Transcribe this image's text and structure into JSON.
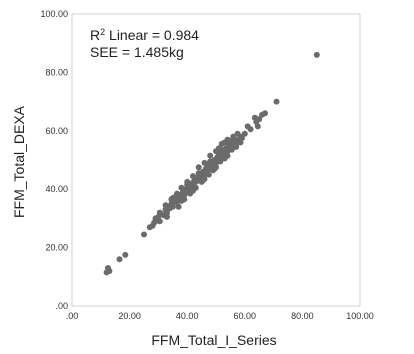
{
  "chart_data": {
    "type": "scatter",
    "xlabel": "FFM_Total_I_Series",
    "ylabel": "FFM_Total_DEXA",
    "xlim": [
      0,
      100
    ],
    "ylim": [
      0,
      100
    ],
    "x_ticks": [
      ".00",
      "20.00",
      "40.00",
      "60.00",
      "80.00",
      "100.00"
    ],
    "y_ticks": [
      ".00",
      "20.00",
      "40.00",
      "60.00",
      "80.00",
      "100.00"
    ],
    "annotations": {
      "r2_prefix": "R",
      "r2_superscript": "2",
      "r2_text": " Linear = 0.984",
      "see_text": "SEE = 1.485kg"
    },
    "point_color": "#6b6b6b",
    "grid": false,
    "points": [
      [
        12.0,
        11.5
      ],
      [
        12.5,
        13.0
      ],
      [
        13.0,
        12.0
      ],
      [
        16.5,
        16.0
      ],
      [
        18.5,
        17.5
      ],
      [
        25.0,
        24.5
      ],
      [
        27.0,
        27.0
      ],
      [
        28.0,
        27.5
      ],
      [
        29.0,
        29.0
      ],
      [
        30.0,
        30.5
      ],
      [
        30.5,
        29.0
      ],
      [
        31.0,
        31.5
      ],
      [
        32.0,
        31.0
      ],
      [
        32.5,
        33.0
      ],
      [
        33.0,
        32.0
      ],
      [
        33.5,
        34.0
      ],
      [
        34.0,
        33.5
      ],
      [
        34.5,
        35.0
      ],
      [
        35.0,
        34.0
      ],
      [
        35.5,
        36.0
      ],
      [
        36.0,
        35.5
      ],
      [
        36.5,
        37.0
      ],
      [
        37.0,
        36.0
      ],
      [
        37.5,
        38.0
      ],
      [
        38.0,
        37.5
      ],
      [
        38.5,
        39.0
      ],
      [
        39.0,
        38.0
      ],
      [
        39.5,
        40.0
      ],
      [
        40.0,
        39.0
      ],
      [
        40.5,
        41.0
      ],
      [
        41.0,
        40.0
      ],
      [
        41.5,
        42.0
      ],
      [
        42.0,
        41.0
      ],
      [
        42.5,
        43.0
      ],
      [
        43.0,
        42.5
      ],
      [
        43.5,
        44.0
      ],
      [
        44.0,
        43.0
      ],
      [
        44.5,
        45.0
      ],
      [
        45.0,
        44.5
      ],
      [
        45.5,
        46.0
      ],
      [
        46.0,
        45.0
      ],
      [
        46.5,
        47.0
      ],
      [
        47.0,
        46.5
      ],
      [
        47.5,
        48.0
      ],
      [
        48.0,
        47.0
      ],
      [
        48.5,
        49.0
      ],
      [
        49.0,
        48.5
      ],
      [
        49.5,
        50.0
      ],
      [
        50.0,
        49.0
      ],
      [
        50.5,
        51.0
      ],
      [
        51.0,
        50.5
      ],
      [
        51.5,
        52.0
      ],
      [
        52.0,
        51.0
      ],
      [
        52.5,
        53.0
      ],
      [
        53.0,
        52.5
      ],
      [
        53.5,
        54.0
      ],
      [
        54.0,
        53.0
      ],
      [
        54.5,
        55.0
      ],
      [
        55.0,
        54.5
      ],
      [
        55.5,
        56.0
      ],
      [
        56.0,
        55.0
      ],
      [
        56.5,
        57.0
      ],
      [
        57.0,
        56.5
      ],
      [
        36.0,
        37.5
      ],
      [
        38.0,
        36.0
      ],
      [
        40.0,
        41.5
      ],
      [
        42.0,
        39.5
      ],
      [
        44.0,
        45.5
      ],
      [
        46.0,
        43.5
      ],
      [
        48.0,
        49.5
      ],
      [
        50.0,
        47.5
      ],
      [
        52.0,
        53.5
      ],
      [
        54.0,
        51.5
      ],
      [
        33.0,
        30.5
      ],
      [
        35.0,
        37.0
      ],
      [
        45.0,
        42.5
      ],
      [
        47.0,
        48.5
      ],
      [
        49.0,
        46.5
      ],
      [
        51.0,
        52.5
      ],
      [
        53.0,
        50.5
      ],
      [
        55.0,
        56.5
      ],
      [
        57.0,
        54.5
      ],
      [
        58.0,
        57.0
      ],
      [
        58.5,
        58.0
      ],
      [
        59.0,
        57.5
      ],
      [
        57.5,
        59.0
      ],
      [
        56.0,
        58.0
      ],
      [
        53.0,
        56.0
      ],
      [
        51.0,
        54.0
      ],
      [
        48.0,
        51.5
      ],
      [
        46.0,
        49.0
      ],
      [
        44.0,
        47.5
      ],
      [
        42.0,
        44.5
      ],
      [
        40.0,
        42.5
      ],
      [
        38.0,
        40.5
      ],
      [
        36.5,
        38.5
      ],
      [
        34.5,
        36.5
      ],
      [
        32.5,
        34.5
      ],
      [
        30.5,
        32.0
      ],
      [
        29.0,
        30.0
      ],
      [
        28.5,
        28.5
      ],
      [
        37.0,
        34.0
      ],
      [
        39.0,
        36.5
      ],
      [
        41.0,
        38.5
      ],
      [
        43.0,
        40.5
      ],
      [
        45.5,
        43.0
      ],
      [
        47.5,
        45.0
      ],
      [
        49.5,
        47.0
      ],
      [
        51.5,
        49.5
      ],
      [
        53.5,
        51.5
      ],
      [
        55.5,
        53.5
      ],
      [
        57.0,
        55.5
      ],
      [
        58.5,
        56.0
      ],
      [
        54.0,
        57.0
      ],
      [
        52.0,
        55.5
      ],
      [
        50.0,
        53.0
      ],
      [
        64.0,
        63.0
      ],
      [
        64.5,
        61.5
      ],
      [
        65.0,
        64.0
      ],
      [
        66.0,
        65.5
      ],
      [
        67.0,
        66.0
      ],
      [
        63.5,
        64.5
      ],
      [
        62.0,
        60.5
      ],
      [
        61.0,
        61.5
      ],
      [
        60.0,
        59.0
      ],
      [
        71.0,
        70.0
      ],
      [
        85.0,
        86.0
      ]
    ]
  }
}
